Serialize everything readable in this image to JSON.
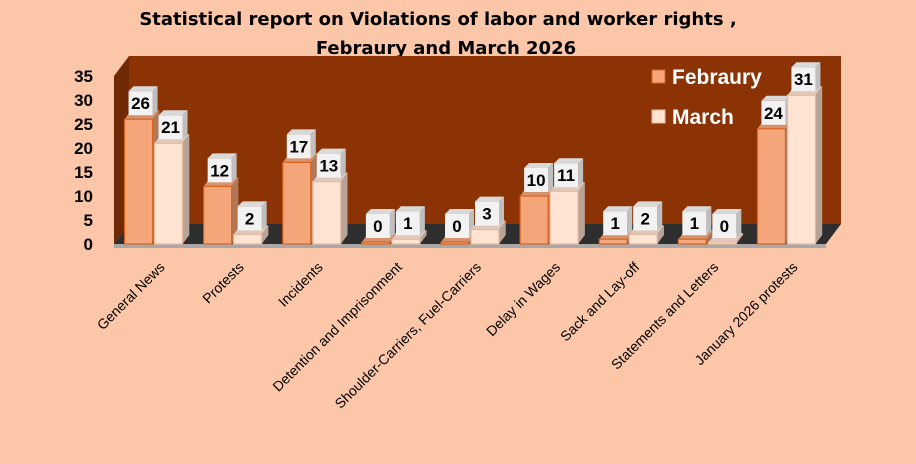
{
  "chart_data": {
    "type": "bar",
    "title_line1": "Statistical report on Violations of labor and worker rights ,",
    "title_line2": "Febraury and March 2026",
    "categories": [
      "General News",
      "Protests",
      "Incidents",
      "Detention and Imprisonment",
      "Shoulder-Carriers, Fuel-Carriers",
      "Delay in Wages",
      "Sack and Lay-off",
      "Statements and Letters",
      "January 2026 protests"
    ],
    "series": [
      {
        "name": "Febraury",
        "values": [
          26,
          12,
          17,
          0,
          0,
          10,
          1,
          1,
          24
        ]
      },
      {
        "name": "March",
        "values": [
          21,
          2,
          13,
          1,
          3,
          11,
          2,
          0,
          31
        ]
      }
    ],
    "ylim": [
      0,
      35
    ],
    "yticks": [
      "0",
      "5",
      "10",
      "15",
      "20",
      "25",
      "30",
      "35"
    ],
    "grid": false,
    "legend": "top-right"
  },
  "colors": {
    "background": "#FBC7A8",
    "wall": "#8B3305",
    "floor": "#2E2E2E",
    "febraury": "#F4A57A",
    "march": "#FFE3D3"
  }
}
